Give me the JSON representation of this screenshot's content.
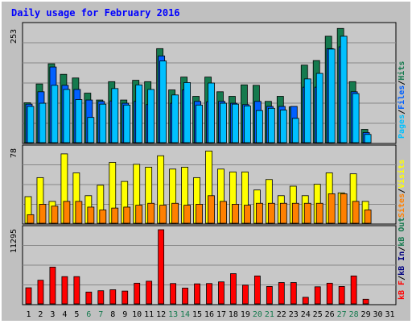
{
  "title": "Daily usage for February 2016",
  "colors": {
    "background": "#c0c0c0",
    "panel": "#c8c8c8",
    "grid": "#888888",
    "title": "#0000ff",
    "hits": "#157a4e",
    "files": "#0060ff",
    "pages": "#00c0ff",
    "visits": "#ffff00",
    "sites": "#ff8000",
    "kbf": "#ff0000",
    "kbin": "#000080",
    "kbout": "#157a4e",
    "weekend": "#157a4e",
    "weekday": "#000000"
  },
  "legend": {
    "top": [
      "Pages",
      "/",
      "Files",
      "/",
      "Hits"
    ],
    "middle": [
      "Sites",
      "/",
      "Visits"
    ],
    "bottom": [
      "kB F",
      "/",
      "kB In",
      "/",
      "kB Out"
    ]
  },
  "chart_data": {
    "type": "bar",
    "title": "Daily usage for February 2016",
    "categories": [
      "1",
      "2",
      "3",
      "4",
      "5",
      "6",
      "7",
      "8",
      "9",
      "10",
      "11",
      "12",
      "13",
      "14",
      "15",
      "16",
      "17",
      "18",
      "19",
      "20",
      "21",
      "22",
      "23",
      "24",
      "25",
      "26",
      "27",
      "28",
      "29",
      "30",
      "31"
    ],
    "weekend_days": [
      "6",
      "7",
      "13",
      "14",
      "20",
      "21",
      "27",
      "28"
    ],
    "panels": [
      {
        "name": "top",
        "ymax_label": "253",
        "ymax": 253,
        "series": [
          {
            "name": "Hits",
            "values": [
              87,
              128,
              172,
              149,
              141,
              108,
              93,
              133,
              93,
              136,
              133,
              205,
              115,
              143,
              101,
              143,
              111,
              101,
              126,
              125,
              90,
              101,
              78,
              169,
              179,
              232,
              249,
              133,
              29,
              null,
              null
            ]
          },
          {
            "name": "Files",
            "values": [
              84,
              111,
              165,
              125,
              116,
              93,
              90,
              91,
              86,
              90,
              83,
              189,
              86,
              115,
              90,
              89,
              90,
              86,
              83,
              90,
              79,
              79,
              79,
              121,
              121,
              205,
              209,
              111,
              22,
              null,
              null
            ]
          },
          {
            "name": "Pages",
            "values": [
              79,
              86,
              125,
              116,
              94,
              55,
              84,
              118,
              82,
              126,
              116,
              178,
              104,
              131,
              82,
              130,
              86,
              84,
              80,
              70,
              75,
              71,
              53,
              139,
              151,
              204,
              232,
              107,
              18,
              null,
              null
            ]
          }
        ]
      },
      {
        "name": "middle",
        "ymax_label": "78",
        "ymax": 78,
        "series": [
          {
            "name": "Visits",
            "values": [
              28,
              48,
              23,
              73,
              53,
              29,
              40,
              64,
              44,
              62,
              59,
              71,
              57,
              59,
              48,
              76,
              57,
              54,
              54,
              35,
              46,
              29,
              39,
              29,
              41,
              53,
              32,
              52,
              23,
              null,
              null
            ]
          },
          {
            "name": "Sites",
            "values": [
              9,
              20,
              18,
              23,
              23,
              17,
              14,
              16,
              17,
              19,
              21,
              19,
              21,
              19,
              20,
              29,
              23,
              20,
              19,
              21,
              21,
              21,
              21,
              21,
              21,
              31,
              31,
              23,
              14,
              null,
              null
            ]
          }
        ]
      },
      {
        "name": "bottom",
        "ymax_label": "11295",
        "ymax": 11295,
        "series": [
          {
            "name": "kB F",
            "values": [
              2450,
              3600,
              5600,
              4150,
              4150,
              1800,
              2000,
              2150,
              1950,
              3150,
              3450,
              11295,
              3100,
              2400,
              3050,
              3100,
              3350,
              4600,
              2850,
              4250,
              2650,
              3250,
              3250,
              1000,
              2600,
              3150,
              2650,
              4250,
              700,
              null,
              null
            ]
          },
          {
            "name": "kB In",
            "values": [
              null,
              null,
              null,
              null,
              null,
              null,
              null,
              null,
              null,
              null,
              null,
              null,
              null,
              null,
              null,
              null,
              null,
              null,
              null,
              null,
              null,
              null,
              null,
              null,
              null,
              null,
              null,
              null,
              null,
              null,
              null
            ]
          },
          {
            "name": "kB Out",
            "values": [
              null,
              null,
              null,
              null,
              null,
              null,
              null,
              null,
              null,
              null,
              null,
              null,
              null,
              null,
              null,
              null,
              null,
              null,
              null,
              null,
              null,
              null,
              null,
              null,
              null,
              null,
              null,
              null,
              null,
              null,
              null
            ]
          }
        ]
      }
    ]
  }
}
